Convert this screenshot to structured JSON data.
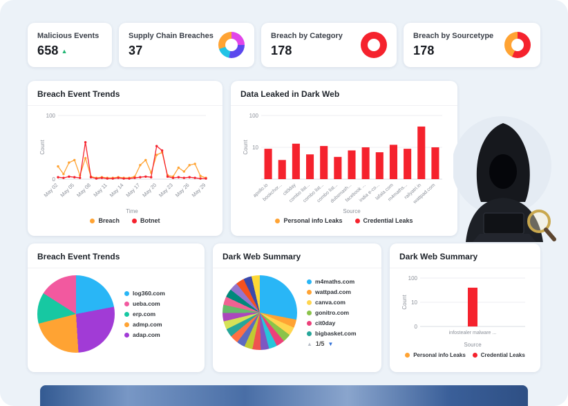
{
  "kpis": [
    {
      "title": "Malicious Events",
      "value": "658",
      "trend": "up"
    },
    {
      "title": "Supply Chain Breaches",
      "value": "37"
    },
    {
      "title": "Breach by Category",
      "value": "178"
    },
    {
      "title": "Breach by Sourcetype",
      "value": "178"
    }
  ],
  "panels": {
    "line": {
      "title": "Breach Event Trends"
    },
    "darkweb": {
      "title": "Data Leaked in Dark Web"
    },
    "pie1": {
      "title": "Breach Event Trends"
    },
    "pie2": {
      "title": "Dark Web Summary",
      "pager": "1/5"
    },
    "bar2": {
      "title": "Dark Web Summary"
    }
  },
  "icons": {
    "trend_up": "▲",
    "pager_up": "▲",
    "pager_down": "▼"
  },
  "colors": {
    "red": "#f5222d",
    "orange": "#ffa333",
    "green": "#21b573",
    "background": "#ecf2f8"
  },
  "chart_data": [
    {
      "type": "donut",
      "title": "Supply Chain Breaches",
      "slices": [
        {
          "value": 25,
          "color": "#e145e9"
        },
        {
          "value": 28,
          "color": "#5b48ee"
        },
        {
          "value": 17,
          "color": "#22c3e6"
        },
        {
          "value": 30,
          "color": "#ffa333"
        }
      ]
    },
    {
      "type": "donut",
      "title": "Breach by Category",
      "slices": [
        {
          "value": 100,
          "color": "#f5222d"
        }
      ]
    },
    {
      "type": "donut",
      "title": "Breach by Sourcetype",
      "slices": [
        {
          "value": 57,
          "color": "#f5222d"
        },
        {
          "value": 43,
          "color": "#ffa333"
        }
      ]
    },
    {
      "type": "line",
      "title": "Breach Event Trends",
      "ylabel": "Count",
      "xlabel": "Time",
      "ymax": 100,
      "yticks": [
        100,
        0
      ],
      "x_ticklabels": [
        "May 02",
        "May 05",
        "May 08",
        "May 11",
        "May 14",
        "May 17",
        "May 20",
        "May 23",
        "May 26",
        "May 29"
      ],
      "series": [
        {
          "name": "Breach",
          "color": "#ffa333",
          "values": [
            20,
            8,
            26,
            30,
            6,
            33,
            4,
            2,
            3,
            2,
            2,
            3,
            2,
            2,
            4,
            22,
            30,
            10,
            38,
            42,
            6,
            4,
            18,
            12,
            22,
            24,
            5,
            2
          ]
        },
        {
          "name": "Botnet",
          "color": "#f5222d",
          "values": [
            3,
            2,
            4,
            3,
            2,
            58,
            3,
            1,
            2,
            1,
            1,
            2,
            1,
            1,
            2,
            3,
            4,
            3,
            52,
            45,
            4,
            2,
            3,
            2,
            3,
            2,
            1,
            1
          ]
        }
      ],
      "legend": [
        {
          "label": "Breach",
          "color": "#ffa333"
        },
        {
          "label": "Botnet",
          "color": "#f5222d"
        }
      ]
    },
    {
      "type": "bar",
      "title": "Data Leaked in Dark Web",
      "ylabel": "Count",
      "xlabel": "Source",
      "yscale": "log",
      "ymax": 100,
      "yticks": [
        100,
        10
      ],
      "categories": [
        "apollo.io",
        "bookchor...",
        "cit0day",
        "combo list...",
        "combo list...",
        "combo list...",
        "dubsmash...",
        "facebook ...",
        "india e-co...",
        "lafala.com",
        "m4maths...",
        "railyatri.in",
        "wattpad.com"
      ],
      "values": [
        9,
        4,
        13,
        6,
        11,
        5,
        8,
        10,
        7,
        12,
        9,
        45,
        10
      ],
      "color": "#f5222d",
      "legend": [
        {
          "label": "Personal info Leaks",
          "color": "#ffa333"
        },
        {
          "label": "Credential Leaks",
          "color": "#f5222d"
        }
      ]
    },
    {
      "type": "pie",
      "title": "Breach Event Trends",
      "slices": [
        {
          "label": "log360.com",
          "value": 22,
          "color": "#29b6f6"
        },
        {
          "label": "adap.com",
          "value": 27,
          "color": "#a13bd6"
        },
        {
          "label": "admp.com",
          "value": 22,
          "color": "#ffa333"
        },
        {
          "label": "erp.com",
          "value": 13,
          "color": "#17c8a2"
        },
        {
          "label": "ueba.com",
          "value": 16,
          "color": "#f2599f"
        }
      ],
      "legend": [
        {
          "label": "log360.com",
          "color": "#29b6f6"
        },
        {
          "label": "ueba.com",
          "color": "#f2599f"
        },
        {
          "label": "erp.com",
          "color": "#17c8a2"
        },
        {
          "label": "admp.com",
          "color": "#ffa333"
        },
        {
          "label": "adap.com",
          "color": "#a13bd6"
        }
      ]
    },
    {
      "type": "pie",
      "title": "Dark Web Summary",
      "slices": [
        {
          "label": "m4maths.com",
          "value": 28,
          "color": "#29b6f6"
        },
        {
          "value": 3.6,
          "color": "#ffa333"
        },
        {
          "value": 3.6,
          "color": "#ffd54f"
        },
        {
          "value": 3.6,
          "color": "#8bc34a"
        },
        {
          "value": 3.6,
          "color": "#ec407a"
        },
        {
          "value": 3.6,
          "color": "#26c6da"
        },
        {
          "value": 3.6,
          "color": "#7e57c2"
        },
        {
          "value": 3.6,
          "color": "#ef5350"
        },
        {
          "value": 3.6,
          "color": "#c0ca33"
        },
        {
          "value": 3.6,
          "color": "#5c6bc0"
        },
        {
          "value": 3.6,
          "color": "#ff7043"
        },
        {
          "value": 3.6,
          "color": "#26a69a"
        },
        {
          "value": 3.6,
          "color": "#d4e157"
        },
        {
          "value": 3.6,
          "color": "#ab47bc"
        },
        {
          "value": 3.6,
          "color": "#66bb6a"
        },
        {
          "value": 3.6,
          "color": "#f06292"
        },
        {
          "value": 3.6,
          "color": "#00897b"
        },
        {
          "value": 3.6,
          "color": "#9575cd"
        },
        {
          "value": 3.6,
          "color": "#f4511e"
        },
        {
          "value": 3.6,
          "color": "#3949ab"
        },
        {
          "value": 3.6,
          "color": "#fdd835"
        }
      ],
      "legend": [
        {
          "label": "m4maths.com",
          "color": "#29b6f6"
        },
        {
          "label": "wattpad.com",
          "color": "#ffa333"
        },
        {
          "label": "canva.com",
          "color": "#ffd54f"
        },
        {
          "label": "gonitro.com",
          "color": "#8bc34a"
        },
        {
          "label": "cit0day",
          "color": "#ec407a"
        },
        {
          "label": "bigbasket.com",
          "color": "#26a69a"
        }
      ],
      "pager": "1/5"
    },
    {
      "type": "bar",
      "title": "Dark Web Summary",
      "ylabel": "Count",
      "xlabel": "Source",
      "yscale": "log",
      "ymax": 100,
      "yticks": [
        100,
        10,
        0
      ],
      "categories": [
        "infostealer malware ..."
      ],
      "values": [
        40
      ],
      "color": "#f5222d",
      "legend": [
        {
          "label": "Personal info Leaks",
          "color": "#ffa333"
        },
        {
          "label": "Credential Leaks",
          "color": "#f5222d"
        }
      ]
    }
  ]
}
